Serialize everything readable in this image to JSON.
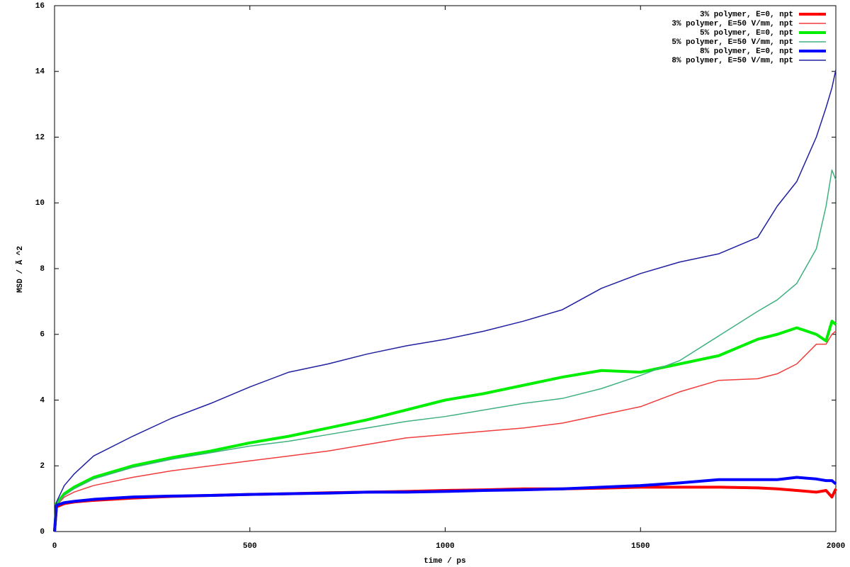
{
  "chart_data": {
    "type": "line",
    "x_label": "time / ps",
    "y_label": "MSD / Ã ^2",
    "x": [
      0,
      5,
      25,
      50,
      100,
      200,
      300,
      400,
      500,
      600,
      700,
      800,
      900,
      1000,
      1100,
      1200,
      1300,
      1400,
      1500,
      1600,
      1700,
      1800,
      1850,
      1900,
      1950,
      1975,
      1990,
      2000
    ],
    "series": [
      {
        "name": "3% polymer, E=0, npt",
        "color": "#ff0000",
        "width": 4,
        "values": [
          0,
          0.75,
          0.85,
          0.9,
          0.95,
          1.02,
          1.07,
          1.1,
          1.13,
          1.15,
          1.18,
          1.2,
          1.22,
          1.25,
          1.27,
          1.3,
          1.3,
          1.32,
          1.35,
          1.35,
          1.35,
          1.33,
          1.3,
          1.25,
          1.2,
          1.25,
          1.05,
          1.3
        ]
      },
      {
        "name": "3% polymer, E=50 V/mm, npt",
        "color": "#f03c3c",
        "width": 1.5,
        "values": [
          0,
          0.8,
          1.05,
          1.2,
          1.4,
          1.65,
          1.85,
          2.0,
          2.15,
          2.3,
          2.45,
          2.65,
          2.85,
          2.95,
          3.05,
          3.15,
          3.3,
          3.55,
          3.8,
          4.25,
          4.6,
          4.65,
          4.8,
          5.1,
          5.7,
          5.7,
          6.0,
          6.1
        ]
      },
      {
        "name": "5% polymer, E=0, npt",
        "color": "#00ee00",
        "width": 4,
        "values": [
          0,
          0.85,
          1.15,
          1.35,
          1.65,
          2.0,
          2.25,
          2.45,
          2.7,
          2.9,
          3.15,
          3.4,
          3.7,
          4.0,
          4.2,
          4.45,
          4.7,
          4.9,
          4.85,
          5.1,
          5.35,
          5.85,
          6.0,
          6.2,
          6.0,
          5.8,
          6.4,
          6.3
        ]
      },
      {
        "name": "5% polymer, E=50 V/mm, npt",
        "color": "#40b080",
        "width": 1.5,
        "values": [
          0,
          0.85,
          1.1,
          1.3,
          1.6,
          1.95,
          2.2,
          2.4,
          2.6,
          2.75,
          2.95,
          3.15,
          3.35,
          3.5,
          3.7,
          3.9,
          4.05,
          4.35,
          4.75,
          5.2,
          5.95,
          6.7,
          7.05,
          7.55,
          8.6,
          9.9,
          11.0,
          10.7
        ]
      },
      {
        "name": "8% polymer, E=0, npt",
        "color": "#0000ff",
        "width": 4,
        "values": [
          0,
          0.8,
          0.88,
          0.92,
          0.98,
          1.05,
          1.08,
          1.1,
          1.13,
          1.15,
          1.17,
          1.2,
          1.2,
          1.22,
          1.25,
          1.27,
          1.3,
          1.35,
          1.4,
          1.48,
          1.58,
          1.58,
          1.58,
          1.65,
          1.6,
          1.55,
          1.55,
          1.45
        ]
      },
      {
        "name": "8% polymer, E=50 V/mm, npt",
        "color": "#2020a0",
        "width": 1.5,
        "values": [
          0,
          0.9,
          1.4,
          1.75,
          2.3,
          2.9,
          3.45,
          3.9,
          4.4,
          4.85,
          5.1,
          5.4,
          5.65,
          5.85,
          6.1,
          6.4,
          6.75,
          7.4,
          7.85,
          8.2,
          8.45,
          8.95,
          9.9,
          10.65,
          12.0,
          12.9,
          13.5,
          14.05
        ]
      }
    ],
    "xlim": [
      0,
      2000
    ],
    "xticks": [
      0,
      500,
      1000,
      1500,
      2000
    ],
    "ylim": [
      0,
      16
    ],
    "yticks": [
      0,
      2,
      4,
      6,
      8,
      10,
      12,
      14,
      16
    ],
    "grid": false,
    "legend": "top-right"
  }
}
